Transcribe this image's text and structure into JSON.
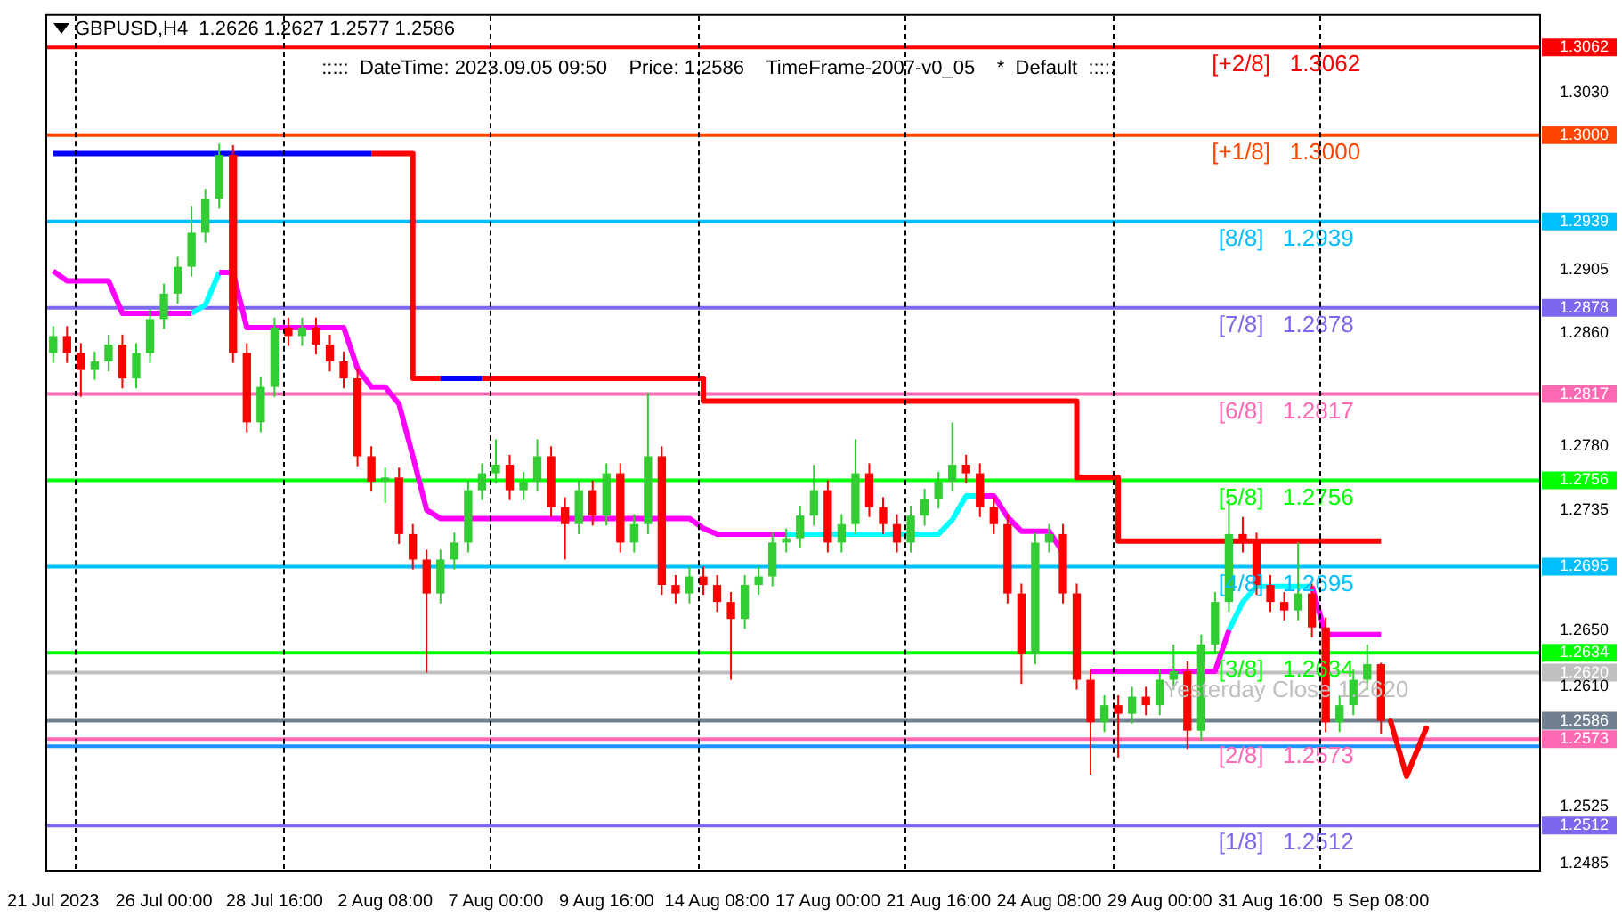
{
  "chart_data": {
    "type": "candlestick",
    "title": "GBPUSD,H4  1.2626 1.2627 1.2577 1.2586",
    "subtitle": ":::::  DateTime: 2023.09.05 09:50    Price: 1.2586    TimeFrame-2007-v0_05    *  Default  :::::",
    "categories": [
      "21 Jul 2023",
      null,
      null,
      null,
      null,
      null,
      null,
      null,
      "26 Jul 00:00",
      null,
      null,
      null,
      null,
      null,
      null,
      null,
      "28 Jul 16:00",
      null,
      null,
      null,
      null,
      null,
      null,
      null,
      "2 Aug 08:00",
      null,
      null,
      null,
      null,
      null,
      null,
      null,
      "7 Aug 00:00",
      null,
      null,
      null,
      null,
      null,
      null,
      null,
      "9 Aug 16:00",
      null,
      null,
      null,
      null,
      null,
      null,
      null,
      "14 Aug 08:00",
      null,
      null,
      null,
      null,
      null,
      null,
      null,
      "17 Aug 00:00",
      null,
      null,
      null,
      null,
      null,
      null,
      null,
      "21 Aug 16:00",
      null,
      null,
      null,
      null,
      null,
      null,
      null,
      "24 Aug 08:00",
      null,
      null,
      null,
      null,
      null,
      null,
      null,
      "29 Aug 00:00",
      null,
      null,
      null,
      null,
      null,
      null,
      null,
      "31 Aug 16:00",
      null,
      null,
      null,
      null,
      null,
      null,
      null,
      "5 Sep 08:00",
      null,
      null,
      null,
      null,
      null,
      null,
      null,
      null,
      null,
      null,
      null
    ],
    "ohlc": [
      [
        1.2846,
        1.2865,
        1.2839,
        1.2858
      ],
      [
        1.2858,
        1.2865,
        1.2839,
        1.2846
      ],
      [
        1.2846,
        1.2853,
        1.2815,
        1.2834
      ],
      [
        1.2834,
        1.2847,
        1.2827,
        1.284
      ],
      [
        1.284,
        1.2859,
        1.2833,
        1.2852
      ],
      [
        1.2852,
        1.2859,
        1.2821,
        1.2828
      ],
      [
        1.2828,
        1.2853,
        1.2821,
        1.2846
      ],
      [
        1.2846,
        1.2877,
        1.2839,
        1.287
      ],
      [
        1.287,
        1.2895,
        1.2863,
        1.2888
      ],
      [
        1.2888,
        1.2914,
        1.2881,
        1.2907
      ],
      [
        1.2907,
        1.295,
        1.29,
        1.2931
      ],
      [
        1.2931,
        1.2962,
        1.2924,
        1.2955
      ],
      [
        1.2955,
        1.2994,
        1.2948,
        1.2986
      ],
      [
        1.2986,
        1.2993,
        1.2839,
        1.2846
      ],
      [
        1.2846,
        1.2853,
        1.279,
        1.2797
      ],
      [
        1.2797,
        1.2829,
        1.279,
        1.2822
      ],
      [
        1.2822,
        1.2871,
        1.2815,
        1.2864
      ],
      [
        1.2864,
        1.2871,
        1.2851,
        1.2858
      ],
      [
        1.2858,
        1.2871,
        1.2851,
        1.2864
      ],
      [
        1.2864,
        1.2871,
        1.2845,
        1.2852
      ],
      [
        1.2852,
        1.2859,
        1.2833,
        1.284
      ],
      [
        1.284,
        1.2847,
        1.2821,
        1.2828
      ],
      [
        1.2828,
        1.2835,
        1.2766,
        1.2773
      ],
      [
        1.2773,
        1.278,
        1.2748,
        1.2755
      ],
      [
        1.2755,
        1.2765,
        1.274,
        1.2758
      ],
      [
        1.2758,
        1.2765,
        1.2711,
        1.2718
      ],
      [
        1.2718,
        1.2725,
        1.2693,
        1.27
      ],
      [
        1.27,
        1.2707,
        1.262,
        1.2676
      ],
      [
        1.2676,
        1.2707,
        1.2669,
        1.27
      ],
      [
        1.27,
        1.2719,
        1.2693,
        1.2712
      ],
      [
        1.2712,
        1.2756,
        1.2705,
        1.2749
      ],
      [
        1.2749,
        1.2768,
        1.2742,
        1.2761
      ],
      [
        1.2761,
        1.2785,
        1.2754,
        1.2767
      ],
      [
        1.2767,
        1.2774,
        1.2742,
        1.2749
      ],
      [
        1.2749,
        1.2762,
        1.2742,
        1.2755
      ],
      [
        1.2755,
        1.2785,
        1.2748,
        1.2773
      ],
      [
        1.2773,
        1.278,
        1.273,
        1.2737
      ],
      [
        1.2737,
        1.2744,
        1.27,
        1.2725
      ],
      [
        1.2725,
        1.2756,
        1.2718,
        1.2749
      ],
      [
        1.2749,
        1.2756,
        1.2724,
        1.2731
      ],
      [
        1.2731,
        1.2768,
        1.2724,
        1.2761
      ],
      [
        1.2761,
        1.2768,
        1.2705,
        1.2712
      ],
      [
        1.2712,
        1.2732,
        1.2705,
        1.2725
      ],
      [
        1.2725,
        1.2818,
        1.2718,
        1.2773
      ],
      [
        1.2773,
        1.278,
        1.2675,
        1.2682
      ],
      [
        1.2682,
        1.2689,
        1.2669,
        1.2676
      ],
      [
        1.2676,
        1.2695,
        1.2669,
        1.2688
      ],
      [
        1.2688,
        1.2695,
        1.2675,
        1.2682
      ],
      [
        1.2682,
        1.2689,
        1.2663,
        1.267
      ],
      [
        1.267,
        1.2677,
        1.2615,
        1.2658
      ],
      [
        1.2658,
        1.2689,
        1.2651,
        1.2682
      ],
      [
        1.2682,
        1.2695,
        1.2675,
        1.2688
      ],
      [
        1.2688,
        1.2719,
        1.2681,
        1.2712
      ],
      [
        1.2712,
        1.2722,
        1.2705,
        1.2715
      ],
      [
        1.2715,
        1.2738,
        1.2708,
        1.2731
      ],
      [
        1.2731,
        1.2767,
        1.2724,
        1.2749
      ],
      [
        1.2749,
        1.2756,
        1.2705,
        1.2712
      ],
      [
        1.2712,
        1.2732,
        1.2705,
        1.2725
      ],
      [
        1.2725,
        1.2785,
        1.2718,
        1.2761
      ],
      [
        1.2761,
        1.2768,
        1.273,
        1.2737
      ],
      [
        1.2737,
        1.2744,
        1.2718,
        1.2725
      ],
      [
        1.2725,
        1.2732,
        1.2705,
        1.2712
      ],
      [
        1.2712,
        1.2738,
        1.2705,
        1.2731
      ],
      [
        1.2731,
        1.275,
        1.2724,
        1.2743
      ],
      [
        1.2743,
        1.2762,
        1.2736,
        1.2755
      ],
      [
        1.2755,
        1.2797,
        1.2748,
        1.2767
      ],
      [
        1.2767,
        1.2774,
        1.2754,
        1.2761
      ],
      [
        1.2761,
        1.2768,
        1.273,
        1.2737
      ],
      [
        1.2737,
        1.2744,
        1.2718,
        1.2725
      ],
      [
        1.2725,
        1.2732,
        1.2669,
        1.2676
      ],
      [
        1.2676,
        1.2683,
        1.2612,
        1.2633
      ],
      [
        1.2633,
        1.2719,
        1.2626,
        1.2712
      ],
      [
        1.2712,
        1.2725,
        1.2705,
        1.2718
      ],
      [
        1.2718,
        1.2725,
        1.2669,
        1.2676
      ],
      [
        1.2676,
        1.2683,
        1.2608,
        1.2615
      ],
      [
        1.2615,
        1.2622,
        1.2548,
        1.2585
      ],
      [
        1.2585,
        1.2604,
        1.2578,
        1.2597
      ],
      [
        1.2597,
        1.2604,
        1.256,
        1.2591
      ],
      [
        1.2591,
        1.261,
        1.2584,
        1.2603
      ],
      [
        1.2603,
        1.261,
        1.259,
        1.2597
      ],
      [
        1.2597,
        1.2622,
        1.259,
        1.2615
      ],
      [
        1.2615,
        1.264,
        1.2608,
        1.2621
      ],
      [
        1.2621,
        1.2628,
        1.2566,
        1.2579
      ],
      [
        1.2579,
        1.2647,
        1.2572,
        1.264
      ],
      [
        1.264,
        1.2677,
        1.2633,
        1.267
      ],
      [
        1.267,
        1.2743,
        1.2663,
        1.2718
      ],
      [
        1.2718,
        1.273,
        1.2705,
        1.2712
      ],
      [
        1.2712,
        1.2719,
        1.2675,
        1.2682
      ],
      [
        1.2682,
        1.2689,
        1.2663,
        1.267
      ],
      [
        1.267,
        1.2677,
        1.2657,
        1.2664
      ],
      [
        1.2664,
        1.2712,
        1.2657,
        1.2676
      ],
      [
        1.2676,
        1.2683,
        1.2645,
        1.2652
      ],
      [
        1.2652,
        1.2659,
        1.2578,
        1.2585
      ],
      [
        1.2585,
        1.2604,
        1.2578,
        1.2597
      ],
      [
        1.2597,
        1.2622,
        1.259,
        1.2615
      ],
      [
        1.2615,
        1.264,
        1.2608,
        1.2626
      ],
      [
        1.2626,
        1.2627,
        1.2577,
        1.2586
      ],
      null,
      null,
      null,
      null,
      null,
      null,
      null,
      null,
      null,
      null,
      null
    ],
    "series": [
      {
        "type": "step",
        "color": "#0000ff",
        "values": [
          1.2987,
          1.2987,
          1.2987,
          1.2987,
          1.2987,
          1.2987,
          1.2987,
          1.2987,
          1.2987,
          1.2987,
          1.2987,
          1.2987,
          1.2987,
          1.2987,
          1.2987,
          1.2987,
          1.2987,
          1.2987,
          1.2987,
          1.2987,
          1.2987,
          1.2987,
          1.2987,
          1.2987,
          null,
          null,
          null,
          null,
          1.2828,
          1.2828,
          1.2828,
          1.2828,
          null,
          null,
          null,
          null,
          null,
          null,
          null,
          null,
          null,
          null,
          null,
          null,
          null,
          null,
          null,
          null,
          null,
          null,
          null,
          null,
          null,
          null,
          null,
          null,
          null,
          null,
          null,
          null,
          null,
          null,
          null,
          null,
          null,
          null,
          null,
          null,
          null,
          null,
          null,
          null,
          null,
          null,
          null,
          null,
          null,
          null,
          null,
          null,
          null,
          null,
          null,
          null,
          null,
          null,
          null,
          null,
          null,
          null,
          null,
          null,
          null,
          null,
          null,
          null,
          null,
          null,
          null,
          null,
          null,
          null,
          null,
          null,
          null,
          null,
          null,
          null
        ]
      },
      {
        "type": "step",
        "color": "#ff0000",
        "values": [
          null,
          null,
          null,
          null,
          null,
          null,
          null,
          null,
          null,
          null,
          null,
          null,
          null,
          null,
          null,
          null,
          null,
          null,
          null,
          null,
          null,
          null,
          null,
          1.2987,
          1.2987,
          1.2987,
          1.2828,
          1.2828,
          1.2828,
          null,
          null,
          1.2828,
          1.2828,
          1.2828,
          1.2828,
          1.2828,
          1.2828,
          1.2828,
          1.2828,
          1.2828,
          1.2828,
          1.2828,
          1.2828,
          1.2828,
          1.2828,
          1.2828,
          1.2828,
          1.2812,
          1.2812,
          1.2812,
          1.2812,
          1.2812,
          1.2812,
          1.2812,
          1.2812,
          1.2812,
          1.2812,
          1.2812,
          1.2812,
          1.2812,
          1.2812,
          1.2812,
          1.2812,
          1.2812,
          1.2812,
          1.2812,
          1.2812,
          1.2812,
          1.2812,
          1.2812,
          1.2812,
          1.2812,
          1.2812,
          1.2812,
          1.2758,
          1.2758,
          1.2758,
          1.2713,
          1.2713,
          1.2713,
          1.2713,
          1.2713,
          1.2713,
          1.2713,
          1.2713,
          1.2713,
          1.2713,
          1.2713,
          1.2713,
          1.2713,
          1.2713,
          1.2713,
          1.2713,
          1.2713,
          1.2713,
          1.2713,
          1.2713,
          null,
          null,
          null,
          null,
          null,
          null,
          null,
          null,
          null,
          null,
          null
        ]
      },
      {
        "type": "line",
        "color": "#ff00ff",
        "values": [
          1.2904,
          1.2897,
          1.2897,
          1.2897,
          1.2897,
          1.2874,
          1.2874,
          1.2874,
          1.2874,
          1.2874,
          1.2874,
          null,
          1.2903,
          1.2903,
          1.2864,
          1.2864,
          1.2864,
          1.2864,
          1.2864,
          1.2864,
          1.2864,
          1.2864,
          1.2835,
          1.2822,
          1.2822,
          1.281,
          1.2773,
          1.2735,
          1.2729,
          1.2729,
          1.2729,
          1.2729,
          1.2729,
          1.2729,
          1.2729,
          1.2729,
          1.2729,
          1.2729,
          1.2729,
          1.2729,
          1.2729,
          1.2729,
          1.2729,
          1.2729,
          1.2729,
          1.2729,
          1.2729,
          1.2722,
          1.2718,
          1.2718,
          1.2718,
          1.2718,
          1.2718,
          1.2718,
          null,
          null,
          null,
          null,
          null,
          null,
          null,
          null,
          null,
          null,
          null,
          null,
          null,
          1.2745,
          1.2745,
          1.273,
          1.272,
          1.272,
          1.272,
          1.2705,
          null,
          1.2621,
          1.2621,
          1.2621,
          1.2621,
          1.2621,
          1.2621,
          1.2621,
          1.2621,
          1.2621,
          1.2621,
          1.265,
          null,
          null,
          null,
          null,
          null,
          1.2681,
          1.2647,
          1.2647,
          1.2647,
          1.2647,
          1.2647,
          null,
          null,
          null,
          null,
          null,
          null,
          null,
          null,
          null,
          null,
          null
        ]
      },
      {
        "type": "line",
        "color": "#00ffff",
        "values": [
          null,
          null,
          null,
          null,
          null,
          null,
          null,
          null,
          null,
          null,
          1.2874,
          1.288,
          1.2903,
          null,
          null,
          null,
          null,
          null,
          null,
          null,
          null,
          null,
          null,
          null,
          null,
          null,
          null,
          null,
          null,
          null,
          null,
          null,
          null,
          null,
          null,
          null,
          null,
          null,
          null,
          null,
          null,
          null,
          null,
          null,
          null,
          null,
          null,
          null,
          null,
          null,
          null,
          null,
          null,
          1.2718,
          1.2718,
          1.2718,
          1.2718,
          1.2718,
          1.2718,
          1.2718,
          1.2718,
          1.2718,
          1.2718,
          1.2718,
          1.2718,
          1.2728,
          1.2745,
          1.2745,
          null,
          null,
          null,
          null,
          null,
          null,
          null,
          null,
          null,
          null,
          null,
          null,
          null,
          null,
          null,
          null,
          null,
          1.265,
          1.267,
          1.2681,
          1.2681,
          1.2681,
          1.2681,
          1.2681,
          null,
          null,
          null,
          null,
          null,
          null,
          null,
          null,
          null,
          null,
          null,
          null,
          null,
          null,
          null,
          null
        ]
      }
    ],
    "ylim": [
      1.248,
      1.3085
    ],
    "yticks": [
      {
        "value": 1.303,
        "label": "1.3030"
      },
      1.2905,
      {
        "value": 1.286,
        "label": "1.2860"
      },
      {
        "value": 1.278,
        "label": "1.2780"
      },
      1.2735,
      {
        "value": 1.265,
        "label": "1.2650"
      },
      {
        "value": 1.261,
        "label": "1.2610"
      },
      1.2525,
      1.2485,
      1.3062,
      {
        "value": 1.3,
        "label": "1.3000"
      },
      1.2939,
      1.2878,
      1.2817,
      1.2756,
      1.2695,
      1.2634,
      {
        "value": 1.262,
        "label": "1.2620"
      },
      1.2586,
      1.2573,
      1.2512
    ],
    "ref_lines": [
      {
        "axis": "y",
        "value": 1.3062,
        "label": "[+2/8]   1.3062",
        "color": "#ff0000"
      },
      {
        "axis": "y",
        "value": 1.3,
        "label": "[+1/8]   1.3000",
        "color": "#ff4500"
      },
      {
        "axis": "y",
        "value": 1.2939,
        "label": "[8/8]   1.2939",
        "color": "#00bfff"
      },
      {
        "axis": "y",
        "value": 1.2878,
        "label": "[7/8]   1.2878",
        "color": "#7b68ee"
      },
      {
        "axis": "y",
        "value": 1.2817,
        "label": "[6/8]   1.2817",
        "color": "#ff69b4"
      },
      {
        "axis": "y",
        "value": 1.2756,
        "label": "[5/8]   1.2756",
        "color": "#00ff00"
      },
      {
        "axis": "y",
        "value": 1.2695,
        "label": "[4/8]   1.2695",
        "color": "#00bfff"
      },
      {
        "axis": "y",
        "value": 1.2634,
        "label": "[3/8]   1.2634",
        "color": "#00ff00"
      },
      {
        "axis": "y",
        "value": 1.262,
        "label": "Yesterday Close 1.2620",
        "color": "#c0c0c0"
      },
      {
        "axis": "y",
        "value": 1.2586,
        "color": "#708090"
      },
      {
        "axis": "y",
        "value": 1.2573,
        "label": "[2/8]   1.2573",
        "color": "#ff69b4"
      },
      {
        "axis": "y",
        "value": 1.2568,
        "color": "#1e90ff"
      },
      {
        "axis": "y",
        "value": 1.2512,
        "label": "[1/8]   1.2512",
        "color": "#7b68ee"
      }
    ]
  }
}
